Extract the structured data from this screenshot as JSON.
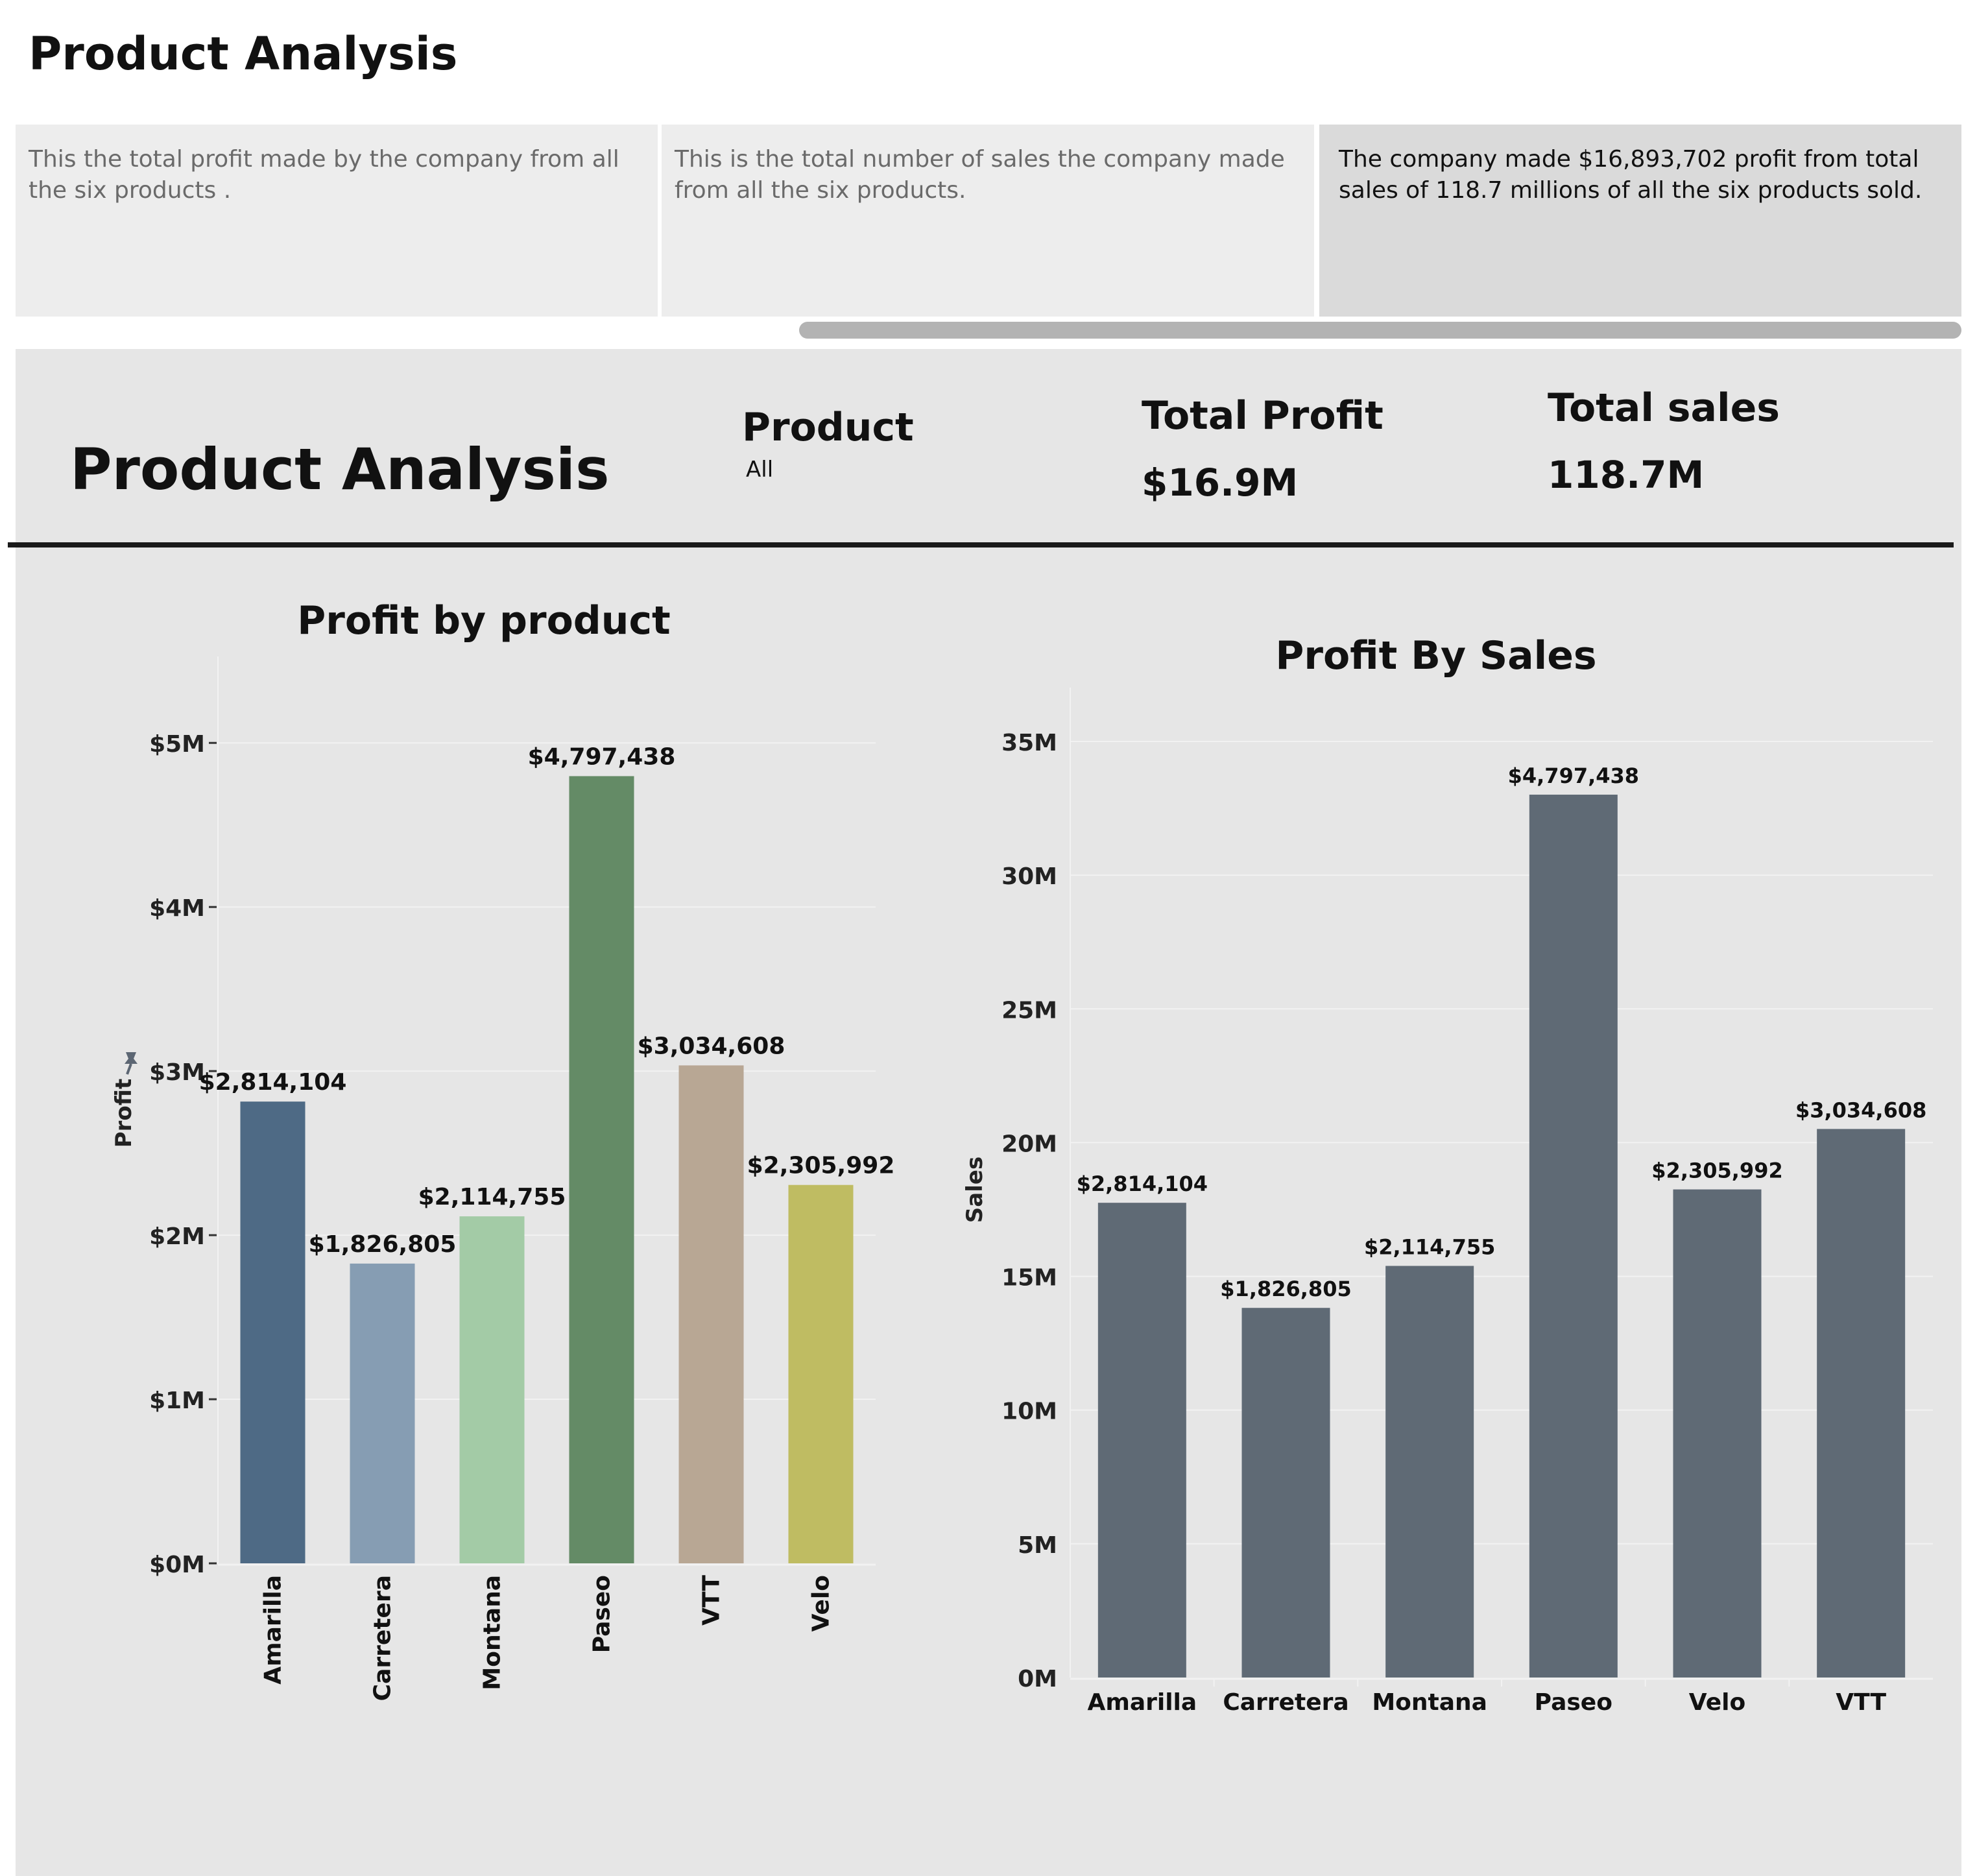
{
  "page": {
    "title": "Product Analysis"
  },
  "story_points": [
    {
      "text": "This the total profit made by the company from all the six products ."
    },
    {
      "text": "This is the total number of sales the company made from all the six products."
    },
    {
      "text": "The company made  $16,893,702  profit from total sales of 118.7 millions of all the six products sold."
    }
  ],
  "dashboard": {
    "title": "Product Analysis",
    "filter": {
      "label": "Product",
      "value": "All"
    },
    "kpis": {
      "profit": {
        "label": "Total Profit",
        "value": "$16.9M"
      },
      "sales": {
        "label": "Total sales",
        "value": "118.7M"
      }
    }
  },
  "colors": {
    "Amarilla": "#4e6a85",
    "Carretera": "#869db3",
    "Montana": "#a3cba6",
    "Paseo": "#648b66",
    "VTT": "#b8a794",
    "Velo": "#bfbc62",
    "sales_bar": "#5f6a75"
  },
  "chart_data": [
    {
      "type": "bar",
      "title": "Profit by product",
      "ylabel": "Profit",
      "categories": [
        "Amarilla",
        "Carretera",
        "Montana",
        "Paseo",
        "VTT",
        "Velo"
      ],
      "values": [
        2814104,
        1826805,
        2114755,
        4797438,
        3034608,
        2305992
      ],
      "labels": [
        "$2,814,104",
        "$1,826,805",
        "$2,114,755",
        "$4,797,438",
        "$3,034,608",
        "$2,305,992"
      ],
      "yticks": [
        0,
        1000000,
        2000000,
        3000000,
        4000000,
        5000000
      ],
      "ytick_labels": [
        "$0M",
        "$1M",
        "$2M",
        "$3M",
        "$4M",
        "$5M"
      ],
      "ylim": [
        0,
        5250000
      ],
      "grid": true,
      "pin_icon": "pin-icon"
    },
    {
      "type": "bar",
      "title": "Profit By Sales",
      "ylabel": "Sales",
      "categories": [
        "Amarilla",
        "Carretera",
        "Montana",
        "Paseo",
        "Velo",
        "VTT"
      ],
      "values": [
        17750000,
        13820000,
        15390000,
        33010000,
        18250000,
        20510000
      ],
      "labels": [
        "$2,814,104",
        "$1,826,805",
        "$2,114,755",
        "$4,797,438",
        "$2,305,992",
        "$3,034,608"
      ],
      "yticks": [
        0,
        5000000,
        10000000,
        15000000,
        20000000,
        25000000,
        30000000,
        35000000
      ],
      "ytick_labels": [
        "0M",
        "5M",
        "10M",
        "15M",
        "20M",
        "25M",
        "30M",
        "35M"
      ],
      "ylim": [
        0,
        35800000
      ],
      "grid": true
    }
  ]
}
